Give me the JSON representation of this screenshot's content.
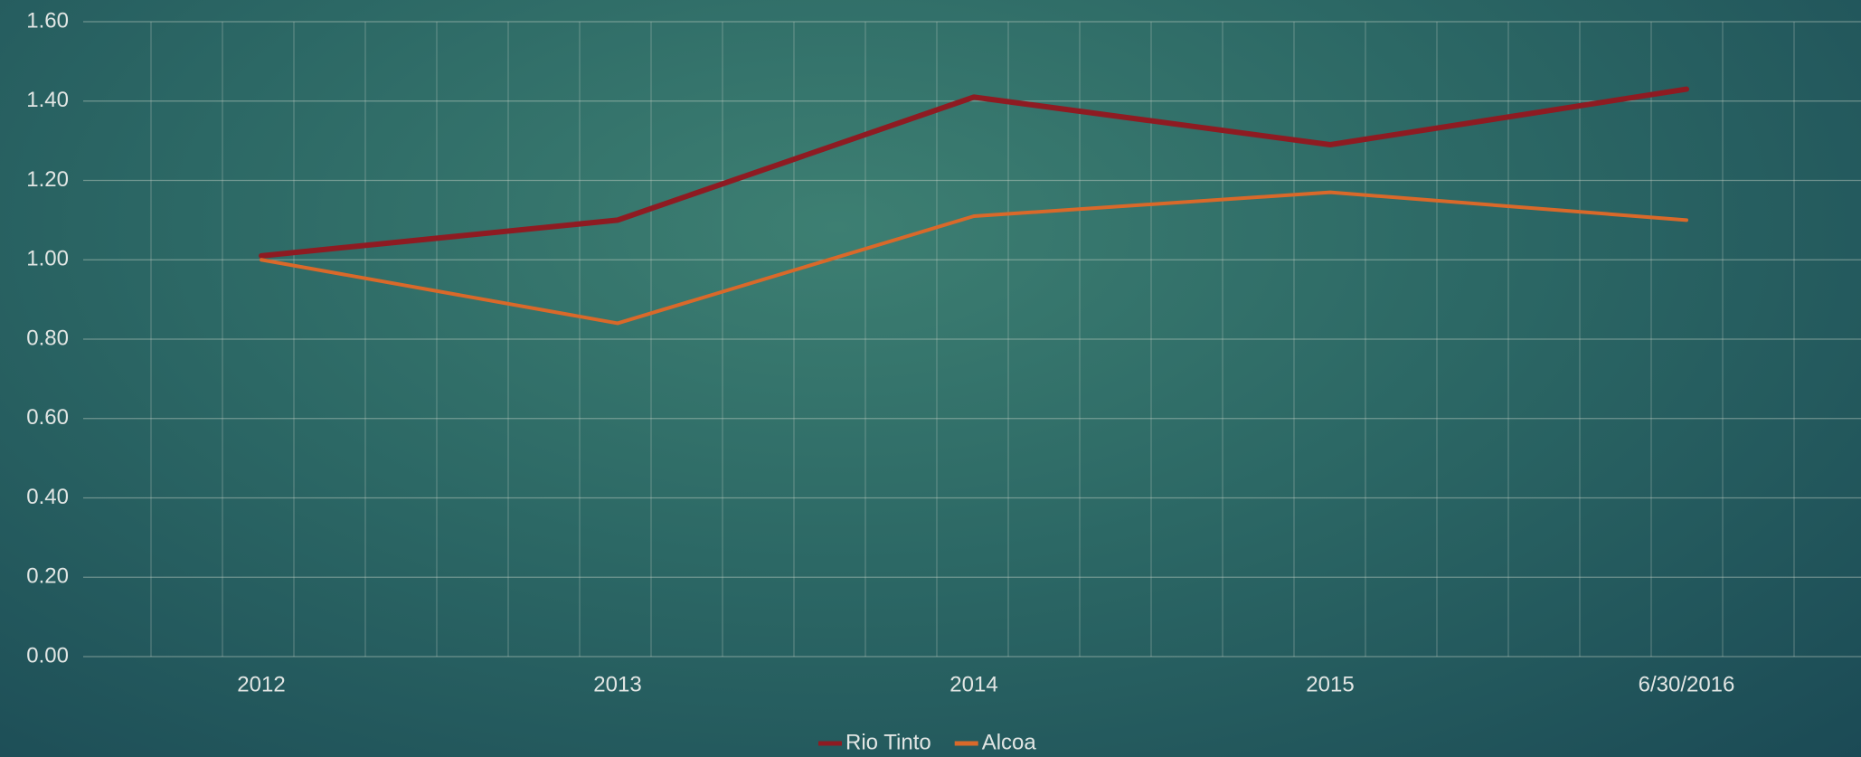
{
  "chart_data": {
    "type": "line",
    "categories": [
      "2012",
      "2013",
      "2014",
      "2015",
      "6/30/2016"
    ],
    "series": [
      {
        "name": "Rio Tinto",
        "color": "#8e1b22",
        "values": [
          1.01,
          1.1,
          1.41,
          1.29,
          1.43
        ]
      },
      {
        "name": "Alcoa",
        "color": "#d9692a",
        "values": [
          1.0,
          0.84,
          1.11,
          1.17,
          1.1
        ]
      }
    ],
    "ylim": [
      0,
      1.6
    ],
    "yticks": [
      {
        "value": 0,
        "label": "0.00"
      },
      {
        "value": 0.2,
        "label": "0.20"
      },
      {
        "value": 0.4,
        "label": "0.40"
      },
      {
        "value": 0.6,
        "label": "0.60"
      },
      {
        "value": 0.8,
        "label": "0.80"
      },
      {
        "value": 1,
        "label": "1.00"
      },
      {
        "value": 1.2,
        "label": "1.20"
      },
      {
        "value": 1.4,
        "label": "1.40"
      },
      {
        "value": 1.6,
        "label": "1.60"
      }
    ],
    "grid": true,
    "legend": "bottom"
  }
}
